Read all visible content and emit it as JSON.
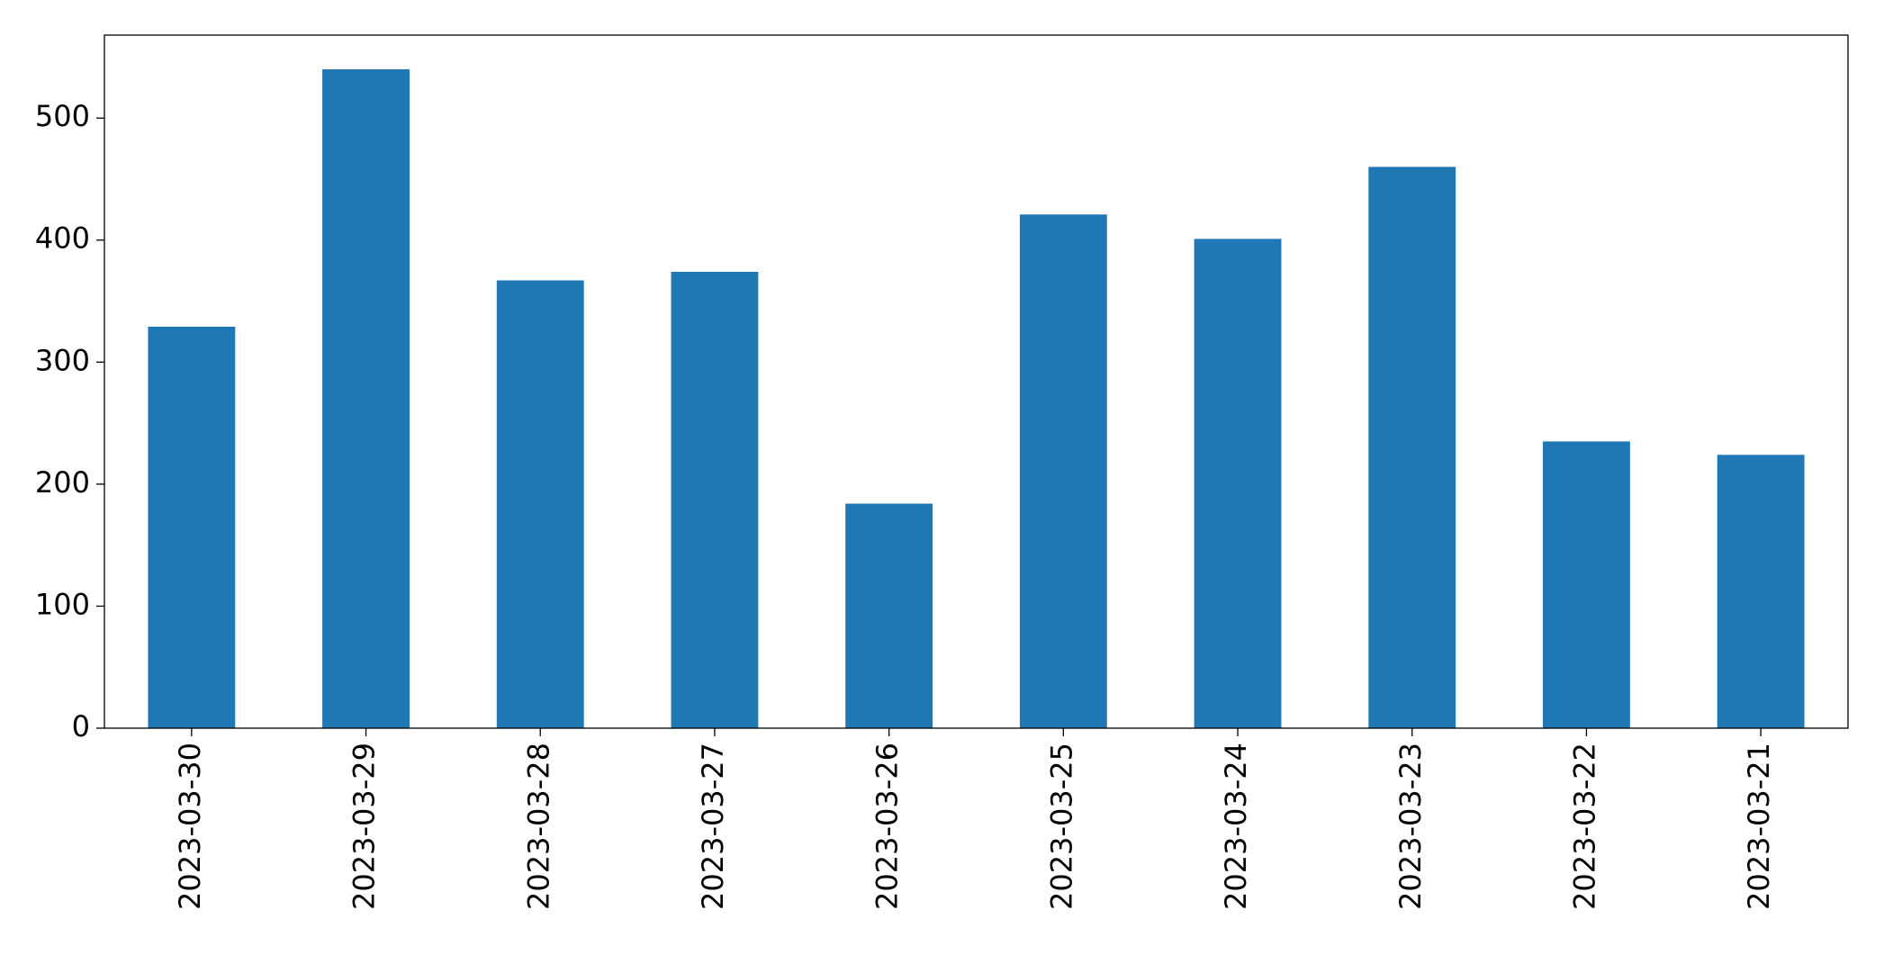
{
  "chart_data": {
    "type": "bar",
    "categories": [
      "2023-03-30",
      "2023-03-29",
      "2023-03-28",
      "2023-03-27",
      "2023-03-26",
      "2023-03-25",
      "2023-03-24",
      "2023-03-23",
      "2023-03-22",
      "2023-03-21"
    ],
    "values": [
      329,
      540,
      367,
      374,
      184,
      421,
      401,
      460,
      235,
      224
    ],
    "color": "#1f77b4",
    "ylim": [
      0,
      568
    ],
    "yticks": [
      0,
      100,
      200,
      300,
      400,
      500
    ],
    "grid": false
  }
}
